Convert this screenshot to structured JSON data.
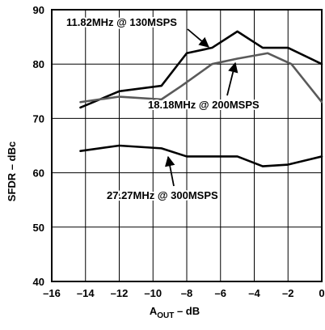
{
  "chart_data": {
    "type": "line",
    "title": "",
    "xlabel": {
      "main": "A",
      "sub": "OUT",
      "rest": " – dB"
    },
    "ylabel": "SFDR – dBc",
    "xlim": [
      -16,
      0
    ],
    "ylim": [
      40,
      90
    ],
    "xticks": [
      -16,
      -14,
      -12,
      -10,
      -8,
      -6,
      -4,
      -2,
      0
    ],
    "yticks": [
      40,
      50,
      60,
      70,
      80,
      90
    ],
    "xtick_labels": [
      "–16",
      "–14",
      "–12",
      "–10",
      "–8",
      "–6",
      "–4",
      "–2",
      "0"
    ],
    "ytick_labels": [
      "40",
      "50",
      "60",
      "70",
      "80",
      "90"
    ],
    "grid": true,
    "series": [
      {
        "annotation": "11.82MHz @ 130MSPS",
        "color": "#000000",
        "x": [
          -14.3,
          -12,
          -9.5,
          -8,
          -6.5,
          -5,
          -3.5,
          -2,
          0
        ],
        "y": [
          72,
          75,
          76,
          82,
          83,
          86,
          83,
          83,
          80
        ]
      },
      {
        "annotation": "18.18MHz @ 200MSPS",
        "color": "#5a5a5a",
        "x": [
          -14.3,
          -12,
          -9.5,
          -8.3,
          -6.5,
          -5,
          -3.2,
          -1.8,
          0
        ],
        "y": [
          73,
          74,
          73.5,
          76,
          80,
          81,
          82,
          80,
          73
        ]
      },
      {
        "annotation": "27.27MHz @ 300MSPS",
        "color": "#000000",
        "x": [
          -14.3,
          -12,
          -9.5,
          -8,
          -6.5,
          -5,
          -3.5,
          -2,
          0
        ],
        "y": [
          64,
          65,
          64.5,
          63,
          63,
          63,
          61.2,
          61.5,
          63
        ]
      }
    ]
  }
}
